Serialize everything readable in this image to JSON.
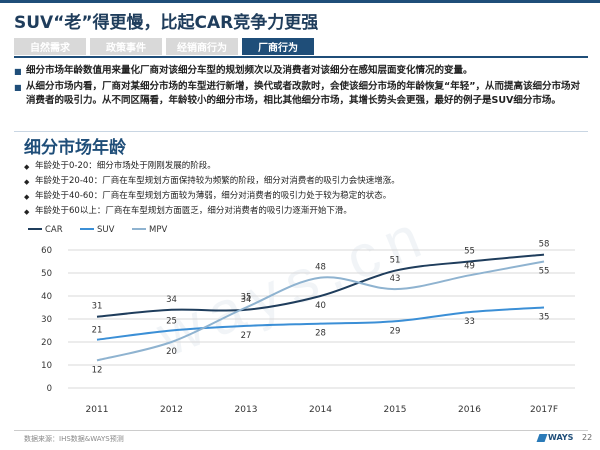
{
  "header": {
    "title": "SUV“老”得更慢，比起CAR竞争力更强",
    "tabs": [
      {
        "label": "自然需求",
        "active": false
      },
      {
        "label": "政策事件",
        "active": false
      },
      {
        "label": "经销商行为",
        "active": false
      },
      {
        "label": "厂商行为",
        "active": true
      }
    ]
  },
  "intro_bullets": [
    "细分市场年龄数值用来量化厂商对该细分车型的规划频次以及消费者对该细分在感知层面变化情况的变量。",
    "从细分市场内看，厂商对某细分市场的车型进行新增，换代或者改款时，会使该细分市场的年龄恢复“年轻”，从而提高该细分市场对消费者的吸引力。从不同区隔看，年龄较小的细分市场，相比其他细分市场，其增长势头会更强，最好的例子是SUV细分市场。"
  ],
  "section": {
    "title": "细分市场年龄",
    "bullets": [
      "年龄处于0-20：细分市场处于刚刚发展的阶段。",
      "年龄处于20-40：厂商在车型规划方面保持较为频繁的阶段，细分对消费者的吸引力会快速增涨。",
      "年龄处于40-60：厂商在车型规划方面较为薄弱，细分对消费者的吸引力处于较为稳定的状态。",
      "年龄处于60以上：厂商在车型规划方面匮乏，细分对消费者的吸引力逐渐开始下滑。"
    ]
  },
  "chart_data": {
    "type": "line",
    "categories": [
      "2011",
      "2012",
      "2013",
      "2014",
      "2015",
      "2016",
      "2017F"
    ],
    "series": [
      {
        "name": "CAR",
        "values": [
          31,
          34,
          34,
          40,
          51,
          55,
          58
        ],
        "color": "#1f3d5c"
      },
      {
        "name": "SUV",
        "values": [
          21,
          25,
          27,
          28,
          29,
          33,
          35
        ],
        "color": "#3b8fd6"
      },
      {
        "name": "MPV",
        "values": [
          12,
          20,
          35,
          48,
          43,
          49,
          55
        ],
        "color": "#8fb3d0"
      }
    ],
    "ylim": [
      0,
      60
    ],
    "yticks": [
      0,
      10,
      20,
      30,
      40,
      50,
      60
    ],
    "grid": true,
    "legend_position": "top-left",
    "title": "",
    "xlabel": "",
    "ylabel": ""
  },
  "watermark": "ways.cn",
  "footer": {
    "source": "数据来源：IHS数据&WAYS预测",
    "logo": "WAYS",
    "page": "22"
  }
}
